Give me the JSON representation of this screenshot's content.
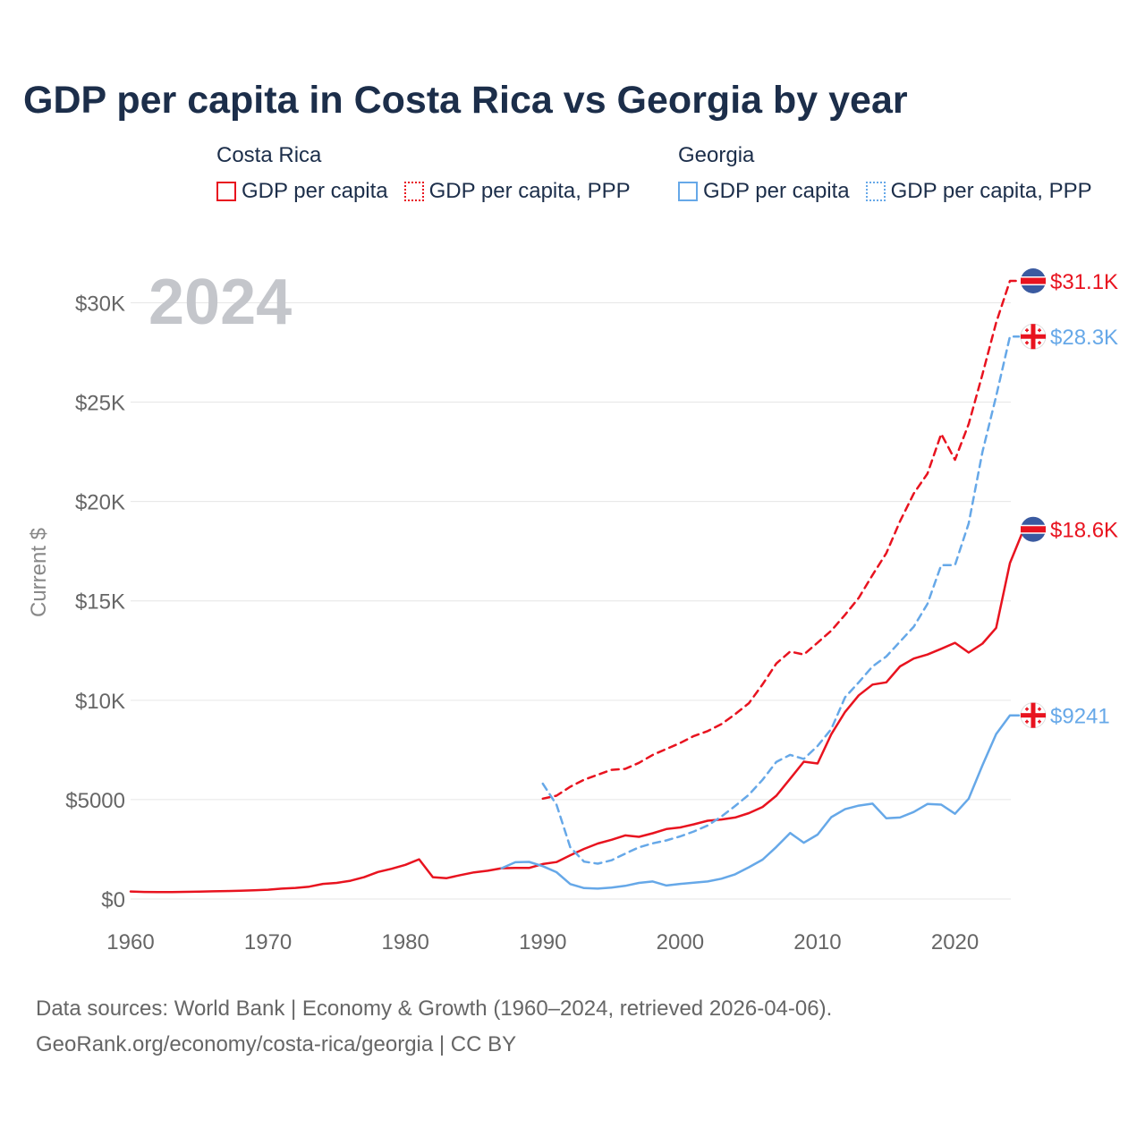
{
  "title": "GDP per capita in Costa Rica vs Georgia by year",
  "legend": {
    "groups": [
      {
        "name": "Costa Rica",
        "color": "#e8131f",
        "items": [
          {
            "label": "GDP per capita",
            "style": "solid"
          },
          {
            "label": "GDP per capita, PPP",
            "style": "dotted"
          }
        ]
      },
      {
        "name": "Georgia",
        "color": "#66a8e8",
        "items": [
          {
            "label": "GDP per capita",
            "style": "solid"
          },
          {
            "label": "GDP per capita, PPP",
            "style": "dotted"
          }
        ]
      }
    ]
  },
  "footer": {
    "line1": "Data sources: World Bank | Economy & Growth (1960–2024, retrieved 2026-04-06).",
    "line2": "GeoRank.org/economy/costa-rica/georgia | CC BY"
  },
  "chart_data": {
    "type": "line",
    "year_watermark": "2024",
    "ylabel": "Current $",
    "xlim": [
      1960,
      2024
    ],
    "ylim": [
      0,
      31100
    ],
    "grid": true,
    "xticks": [
      1960,
      1970,
      1980,
      1990,
      2000,
      2010,
      2020
    ],
    "xtick_labels": [
      "1960",
      "1970",
      "1980",
      "1990",
      "2000",
      "2010",
      "2020"
    ],
    "yticks": [
      0,
      5000,
      10000,
      15000,
      20000,
      25000,
      30000
    ],
    "ytick_labels": [
      "$0",
      "$5000",
      "$10K",
      "$15K",
      "$20K",
      "$25K",
      "$30K"
    ],
    "series": [
      {
        "name": "Costa Rica GDP per capita",
        "country": "Costa Rica",
        "style": "solid",
        "color": "#e8131f",
        "end_label": "$18.6K",
        "start_year": 1960,
        "values": [
          380,
          355,
          345,
          350,
          360,
          370,
          385,
          400,
          420,
          440,
          470,
          520,
          560,
          620,
          760,
          810,
          920,
          1100,
          1360,
          1520,
          1720,
          2000,
          1100,
          1050,
          1200,
          1340,
          1420,
          1550,
          1560,
          1560,
          1760,
          1860,
          2200,
          2520,
          2790,
          2980,
          3200,
          3130,
          3310,
          3520,
          3600,
          3760,
          3940,
          4000,
          4100,
          4320,
          4630,
          5200,
          6050,
          6910,
          6820,
          8290,
          9410,
          10250,
          10790,
          10900,
          11700,
          12100,
          12300,
          12590,
          12890,
          12400,
          12850,
          13640,
          16900,
          18600
        ]
      },
      {
        "name": "Costa Rica GDP per capita, PPP",
        "country": "Costa Rica",
        "style": "dashed",
        "color": "#e8131f",
        "end_label": "$31.1K",
        "start_year": 1990,
        "values": [
          5050,
          5200,
          5650,
          6000,
          6250,
          6500,
          6550,
          6850,
          7250,
          7550,
          7850,
          8200,
          8450,
          8800,
          9300,
          9850,
          10800,
          11850,
          12450,
          12300,
          12900,
          13500,
          14300,
          15150,
          16300,
          17400,
          19000,
          20400,
          21400,
          23400,
          22100,
          23900,
          26400,
          29000,
          31100
        ]
      },
      {
        "name": "Georgia GDP per capita",
        "country": "Georgia",
        "style": "solid",
        "color": "#66a8e8",
        "end_label": "$9241",
        "start_year": 1987,
        "values": [
          1550,
          1850,
          1870,
          1650,
          1350,
          750,
          550,
          520,
          570,
          660,
          810,
          880,
          680,
          760,
          820,
          880,
          1020,
          1240,
          1600,
          1980,
          2620,
          3320,
          2830,
          3240,
          4120,
          4520,
          4700,
          4800,
          4060,
          4100,
          4380,
          4780,
          4750,
          4290,
          5050,
          6730,
          8300,
          9241
        ]
      },
      {
        "name": "Georgia GDP per capita, PPP",
        "country": "Georgia",
        "style": "dashed",
        "color": "#66a8e8",
        "end_label": "$28.3K",
        "start_year": 1990,
        "values": [
          5800,
          4750,
          2600,
          1880,
          1780,
          1950,
          2280,
          2600,
          2800,
          2950,
          3150,
          3400,
          3700,
          4150,
          4680,
          5250,
          6000,
          6900,
          7250,
          7050,
          7700,
          8550,
          10150,
          10900,
          11700,
          12200,
          12950,
          13700,
          14850,
          16800,
          16800,
          18900,
          22500,
          25300,
          28300
        ]
      }
    ]
  }
}
